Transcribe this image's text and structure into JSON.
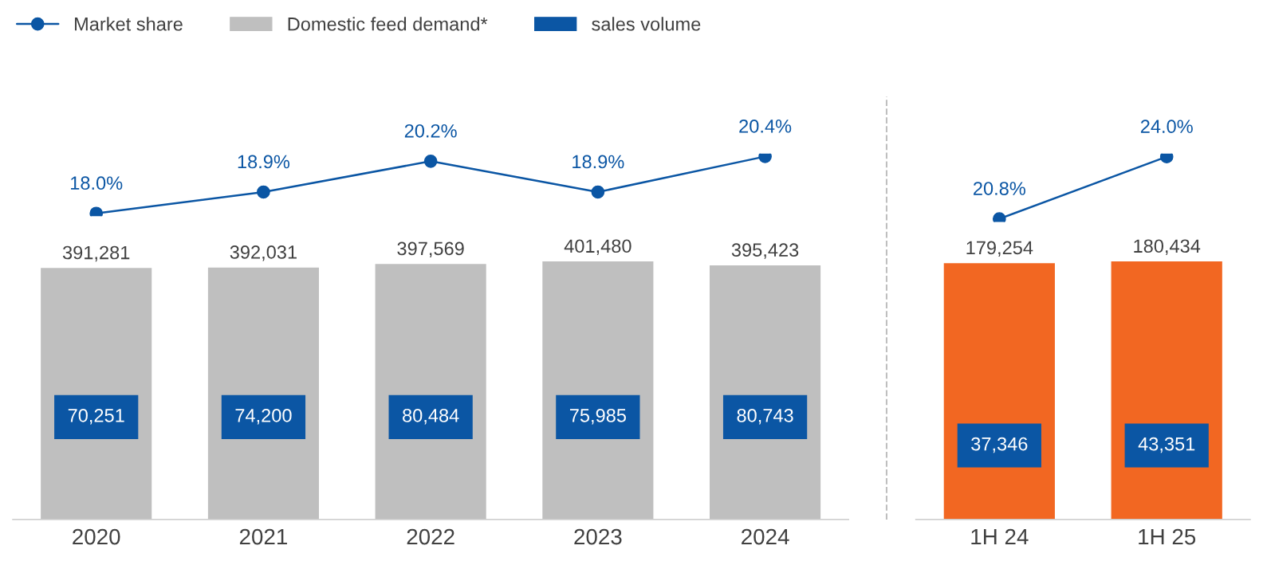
{
  "chart_data": [
    {
      "type": "line",
      "tick_labels": false,
      "legend": "top left",
      "grid": false,
      "marker": "circle",
      "series": [
        {
          "name": "Market share",
          "color": "#0b56a4",
          "values": [
            18.0,
            18.9,
            20.2,
            18.9,
            20.4
          ],
          "value_labels": [
            "18.0%",
            "18.9%",
            "20.2%",
            "18.9%",
            "20.4%"
          ]
        }
      ]
    },
    {
      "type": "bar",
      "categories": [
        "2020",
        "2021",
        "2022",
        "2023",
        "2024"
      ],
      "tick_labels": "x",
      "grid": false,
      "series": [
        {
          "name": "Domestic feed demand*",
          "color": "#bfbfbf",
          "values": [
            391281,
            392031,
            397569,
            401480,
            395423
          ],
          "value_labels": [
            "391,281",
            "392,031",
            "397,569",
            "401,480",
            "395,423"
          ]
        }
      ]
    },
    {
      "type": "other",
      "series": [
        {
          "name": "sales volume",
          "color": "#0b56a4",
          "values": [
            70251,
            74200,
            80484,
            75985,
            80743
          ],
          "value_labels": [
            "70,251",
            "74,200",
            "80,484",
            "75,985",
            "80,743"
          ]
        }
      ]
    },
    {
      "type": "line",
      "tick_labels": false,
      "grid": false,
      "marker": "circle",
      "series": [
        {
          "color": "#0b56a4",
          "values": [
            20.8,
            24.0
          ],
          "value_labels": [
            "20.8%",
            "24.0%"
          ]
        }
      ]
    },
    {
      "type": "bar",
      "categories": [
        "1H 24",
        "1H 25"
      ],
      "tick_labels": "x",
      "grid": false,
      "series": [
        {
          "color": "#f26722",
          "values": [
            179254,
            180434
          ],
          "value_labels": [
            "179,254",
            "180,434"
          ]
        }
      ]
    },
    {
      "type": "other",
      "series": [
        {
          "color": "#0b56a4",
          "values": [
            37346,
            43351
          ],
          "value_labels": [
            "37,346",
            "43,351"
          ]
        }
      ]
    }
  ]
}
